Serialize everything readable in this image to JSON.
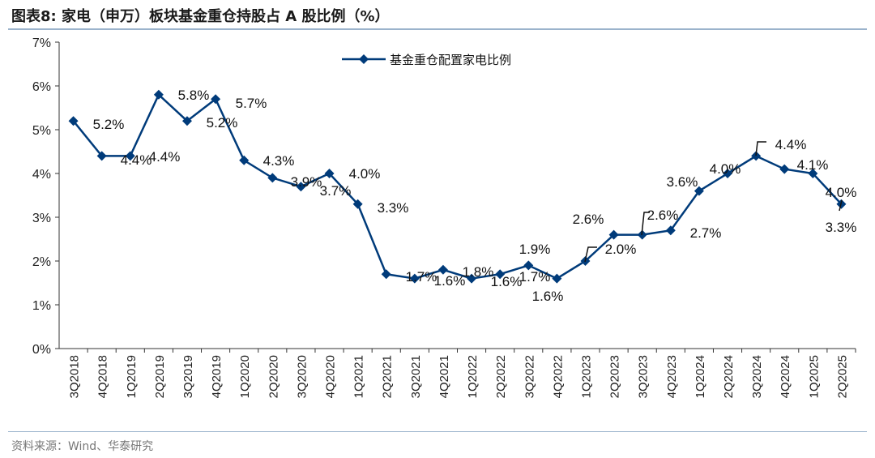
{
  "title": "图表8:   家电（申万）板块基金重仓持股占 A 股比例（%）",
  "source": "资料来源：Wind、华泰研究",
  "chart_data": {
    "type": "line",
    "title": "家电（申万）板块基金重仓持股占 A 股比例（%）",
    "xlabel": "",
    "ylabel": "",
    "ylim": [
      0,
      7
    ],
    "yticks": [
      "0%",
      "1%",
      "2%",
      "3%",
      "4%",
      "5%",
      "6%",
      "7%"
    ],
    "legend": "top-center",
    "grid": false,
    "categories": [
      "3Q2018",
      "4Q2018",
      "1Q2019",
      "2Q2019",
      "3Q2019",
      "4Q2019",
      "1Q2020",
      "2Q2020",
      "3Q2020",
      "4Q2020",
      "1Q2021",
      "2Q2021",
      "3Q2021",
      "4Q2021",
      "1Q2022",
      "2Q2022",
      "3Q2022",
      "4Q2022",
      "1Q2023",
      "2Q2023",
      "3Q2023",
      "4Q2023",
      "1Q2024",
      "2Q2024",
      "3Q2024",
      "4Q2024",
      "1Q2025",
      "2Q2025"
    ],
    "series": [
      {
        "name": "基金重仓配置家电比例",
        "color": "#003b7a",
        "values": [
          5.2,
          4.4,
          4.4,
          5.8,
          5.2,
          5.7,
          4.3,
          3.9,
          3.7,
          4.0,
          3.3,
          1.7,
          1.6,
          1.8,
          1.6,
          1.7,
          1.9,
          1.6,
          2.0,
          2.6,
          2.6,
          2.7,
          3.6,
          4.0,
          4.4,
          4.1,
          4.0,
          3.3
        ],
        "labels": [
          "5.2%",
          "4.4%",
          "4.4%",
          "5.8%",
          "5.2%",
          "5.7%",
          "4.3%",
          "3.9%",
          "3.7%",
          "4.0%",
          "3.3%",
          "1.7%",
          "1.6%",
          "1.8%",
          "1.6%",
          "1.7%",
          "1.9%",
          "1.6%",
          "2.0%",
          "2.6%",
          "2.6%",
          "2.7%",
          "3.6%",
          "4.0%",
          "4.4%",
          "4.1%",
          "4.0%",
          "3.3%"
        ]
      }
    ]
  }
}
